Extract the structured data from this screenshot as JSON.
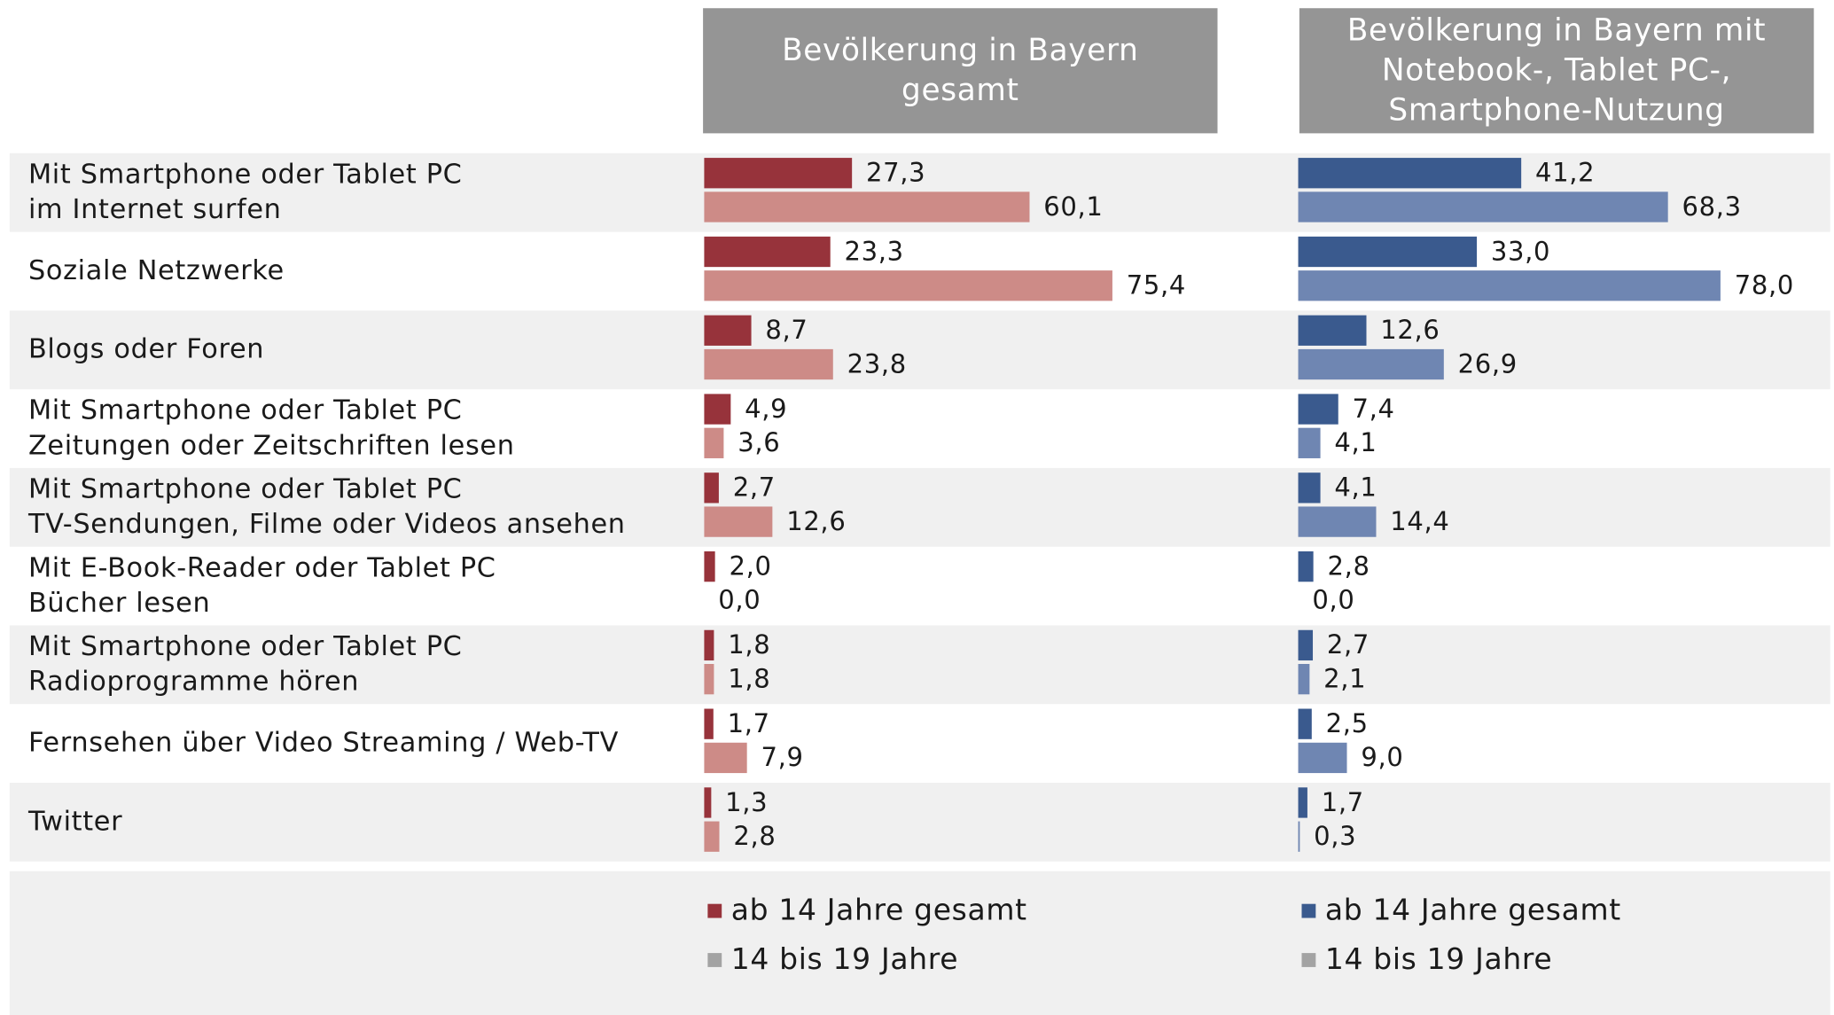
{
  "chart_data": [
    {
      "type": "bar",
      "orientation": "horizontal",
      "title": "Bevölkerung in Bayern\ngesamt",
      "categories": [
        "Mit Smartphone oder Tablet PC\nim Internet surfen",
        "Soziale Netzwerke",
        "Blogs oder Foren",
        "Mit Smartphone oder Tablet PC\nZeitungen oder Zeitschriften lesen",
        "Mit Smartphone oder Tablet PC\nTV-Sendungen, Filme oder Videos ansehen",
        "Mit E-Book-Reader oder Tablet PC\nBücher lesen",
        "Mit Smartphone oder Tablet PC\nRadioprogramme hören",
        "Fernsehen über Video Streaming / Web-TV",
        "Twitter"
      ],
      "xlim": [
        0,
        100
      ],
      "series": [
        {
          "name": "ab 14 Jahre gesamt",
          "color": "#97333b",
          "legend_color": "#97333b",
          "values": [
            27.3,
            23.3,
            8.7,
            4.9,
            2.7,
            2.0,
            1.8,
            1.7,
            1.3
          ],
          "value_labels": [
            "27,3",
            "23,3",
            "8,7",
            "4,9",
            "2,7",
            "2,0",
            "1,8",
            "1,7",
            "1,3"
          ]
        },
        {
          "name": "14 bis 19 Jahre",
          "color": "#cd8b87",
          "legend_color": "#a3a3a3",
          "values": [
            60.1,
            75.4,
            23.8,
            3.6,
            12.6,
            0.0,
            1.8,
            7.9,
            2.8
          ],
          "value_labels": [
            "60,1",
            "75,4",
            "23,8",
            "3,6",
            "12,6",
            "0,0",
            "1,8",
            "7,9",
            "2,8"
          ]
        }
      ]
    },
    {
      "type": "bar",
      "orientation": "horizontal",
      "title": "Bevölkerung in Bayern mit\nNotebook-, Tablet PC-,\nSmartphone-Nutzung",
      "xlim": [
        0,
        100
      ],
      "series": [
        {
          "name": "ab 14 Jahre gesamt",
          "color": "#3a5a8e",
          "legend_color": "#3a5a8e",
          "values": [
            41.2,
            33.0,
            12.6,
            7.4,
            4.1,
            2.8,
            2.7,
            2.5,
            1.7
          ],
          "value_labels": [
            "41,2",
            "33,0",
            "12,6",
            "7,4",
            "4,1",
            "2,8",
            "2,7",
            "2,5",
            "1,7"
          ]
        },
        {
          "name": "14 bis 19 Jahre",
          "color": "#6f86b2",
          "legend_color": "#a3a3a3",
          "values": [
            68.3,
            78.0,
            26.9,
            4.1,
            14.4,
            0.0,
            2.1,
            9.0,
            0.3
          ],
          "value_labels": [
            "68,3",
            "78,0",
            "26,9",
            "4,1",
            "14,4",
            "0,0",
            "2,1",
            "9,0",
            "0,3"
          ]
        }
      ]
    }
  ]
}
